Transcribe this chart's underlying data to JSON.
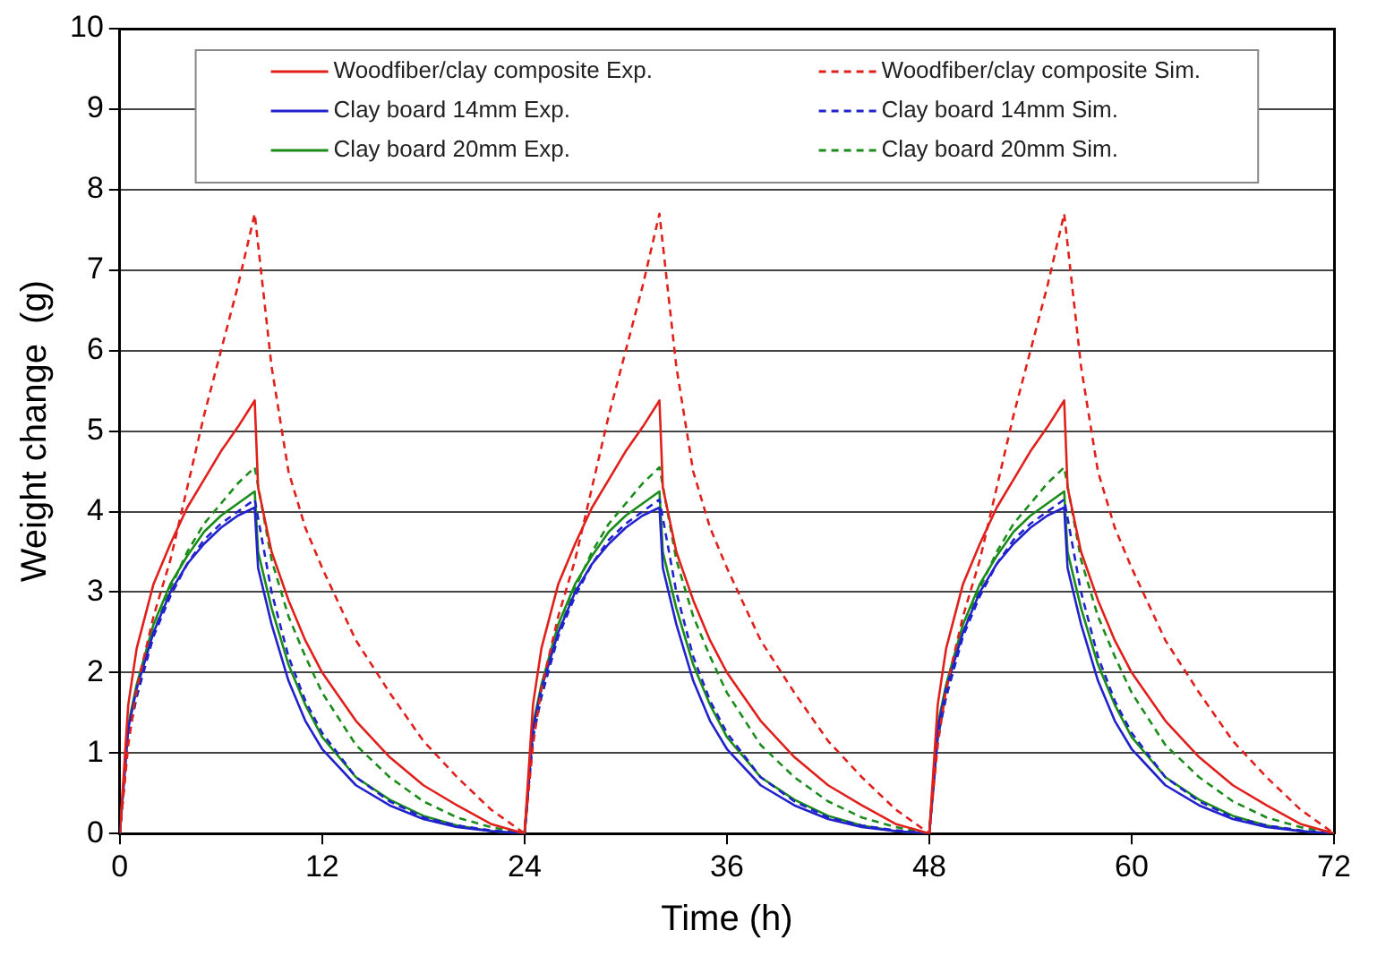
{
  "chart_data": {
    "type": "line",
    "xlabel": "Time (h)",
    "ylabel": "Weight change  (g)",
    "xlim": [
      0,
      72
    ],
    "xticks": [
      0,
      12,
      24,
      36,
      48,
      60,
      72
    ],
    "ylim": [
      0,
      10
    ],
    "yticks": [
      0,
      1,
      2,
      3,
      4,
      5,
      6,
      7,
      8,
      9,
      10
    ],
    "grid": "y",
    "legend": "top",
    "marker": "none",
    "series": [
      {
        "name": "Woodfiber/clay composite Exp.",
        "color": "#e0201b",
        "line_style": "solid",
        "x": [
          0,
          0.5,
          1,
          2,
          3,
          4,
          5,
          6,
          7,
          8,
          8.2,
          9,
          10,
          11,
          12,
          14,
          16,
          18,
          20,
          22,
          24,
          24.5,
          25,
          26,
          27,
          28,
          29,
          30,
          31,
          32,
          32.2,
          33,
          34,
          35,
          36,
          38,
          40,
          42,
          44,
          46,
          48,
          48.5,
          49,
          50,
          51,
          52,
          53,
          54,
          55,
          56,
          56.2,
          57,
          58,
          59,
          60,
          62,
          64,
          66,
          68,
          70,
          72
        ],
        "values": [
          0,
          1.6,
          2.3,
          3.1,
          3.6,
          4.05,
          4.4,
          4.75,
          5.05,
          5.38,
          4.3,
          3.5,
          2.9,
          2.4,
          2.0,
          1.4,
          0.95,
          0.6,
          0.35,
          0.12,
          0,
          1.6,
          2.3,
          3.1,
          3.6,
          4.05,
          4.4,
          4.75,
          5.05,
          5.38,
          4.3,
          3.5,
          2.9,
          2.4,
          2.0,
          1.4,
          0.95,
          0.6,
          0.35,
          0.12,
          0,
          1.6,
          2.3,
          3.1,
          3.6,
          4.05,
          4.4,
          4.75,
          5.05,
          5.38,
          4.3,
          3.5,
          2.9,
          2.4,
          2.0,
          1.4,
          0.95,
          0.6,
          0.35,
          0.12,
          0
        ]
      },
      {
        "name": "Woodfiber/clay composite Sim.",
        "color": "#e0201b",
        "line_style": "dashed",
        "x": [
          0,
          0.5,
          1,
          2,
          3,
          4,
          5,
          6,
          7,
          8,
          9,
          10,
          11,
          12,
          14,
          16,
          18,
          20,
          22,
          24,
          24.5,
          25,
          26,
          27,
          28,
          29,
          30,
          31,
          32,
          33,
          34,
          35,
          36,
          38,
          40,
          42,
          44,
          46,
          48,
          48.5,
          49,
          50,
          51,
          52,
          53,
          54,
          55,
          56,
          57,
          58,
          59,
          60,
          62,
          64,
          66,
          68,
          70,
          72
        ],
        "values": [
          0,
          1.1,
          1.8,
          2.7,
          3.4,
          4.3,
          5.2,
          6.0,
          6.8,
          7.7,
          5.8,
          4.5,
          3.8,
          3.3,
          2.4,
          1.75,
          1.15,
          0.7,
          0.3,
          0,
          1.1,
          1.8,
          2.7,
          3.4,
          4.3,
          5.2,
          6.0,
          6.8,
          7.7,
          5.8,
          4.5,
          3.8,
          3.3,
          2.4,
          1.75,
          1.15,
          0.7,
          0.3,
          0,
          1.1,
          1.8,
          2.7,
          3.4,
          4.3,
          5.2,
          6.0,
          6.8,
          7.7,
          5.8,
          4.5,
          3.8,
          3.3,
          2.4,
          1.75,
          1.15,
          0.7,
          0.3,
          0
        ]
      },
      {
        "name": "Clay board 14mm Exp.",
        "color": "#2222cc",
        "line_style": "solid",
        "x": [
          0,
          0.5,
          1,
          2,
          3,
          4,
          5,
          6,
          7,
          8,
          8.2,
          9,
          10,
          11,
          12,
          14,
          16,
          18,
          20,
          22,
          24,
          24.5,
          25,
          26,
          27,
          28,
          29,
          30,
          31,
          32,
          32.2,
          33,
          34,
          35,
          36,
          38,
          40,
          42,
          44,
          46,
          48,
          48.5,
          49,
          50,
          51,
          52,
          53,
          54,
          55,
          56,
          56.2,
          57,
          58,
          59,
          60,
          62,
          64,
          66,
          68,
          70,
          72
        ],
        "values": [
          0,
          1.3,
          1.8,
          2.5,
          3.0,
          3.35,
          3.6,
          3.8,
          3.95,
          4.05,
          3.3,
          2.6,
          1.9,
          1.4,
          1.05,
          0.6,
          0.35,
          0.18,
          0.08,
          0.03,
          0,
          1.3,
          1.8,
          2.5,
          3.0,
          3.35,
          3.6,
          3.8,
          3.95,
          4.05,
          3.3,
          2.6,
          1.9,
          1.4,
          1.05,
          0.6,
          0.35,
          0.18,
          0.08,
          0.03,
          0,
          1.3,
          1.8,
          2.5,
          3.0,
          3.35,
          3.6,
          3.8,
          3.95,
          4.05,
          3.3,
          2.6,
          1.9,
          1.4,
          1.05,
          0.6,
          0.35,
          0.18,
          0.08,
          0.03,
          0
        ]
      },
      {
        "name": "Clay board 14mm Sim.",
        "color": "#2222cc",
        "line_style": "dashed",
        "x": [
          0,
          0.5,
          1,
          2,
          3,
          4,
          5,
          6,
          7,
          8,
          9,
          10,
          11,
          12,
          14,
          16,
          18,
          20,
          22,
          24,
          24.5,
          25,
          26,
          27,
          28,
          29,
          30,
          31,
          32,
          33,
          34,
          35,
          36,
          38,
          40,
          42,
          44,
          46,
          48,
          48.5,
          49,
          50,
          51,
          52,
          53,
          54,
          55,
          56,
          57,
          58,
          59,
          60,
          62,
          64,
          66,
          68,
          70,
          72
        ],
        "values": [
          0,
          1.2,
          1.7,
          2.45,
          2.95,
          3.35,
          3.65,
          3.85,
          4.0,
          4.15,
          3.0,
          2.2,
          1.65,
          1.25,
          0.7,
          0.4,
          0.2,
          0.1,
          0.04,
          0,
          1.2,
          1.7,
          2.45,
          2.95,
          3.35,
          3.65,
          3.85,
          4.0,
          4.15,
          3.0,
          2.2,
          1.65,
          1.25,
          0.7,
          0.4,
          0.2,
          0.1,
          0.04,
          0,
          1.2,
          1.7,
          2.45,
          2.95,
          3.35,
          3.65,
          3.85,
          4.0,
          4.15,
          3.0,
          2.2,
          1.65,
          1.25,
          0.7,
          0.4,
          0.2,
          0.1,
          0.04,
          0
        ]
      },
      {
        "name": "Clay board 20mm Exp.",
        "color": "#1a8c1a",
        "line_style": "solid",
        "x": [
          0,
          0.5,
          1,
          2,
          3,
          4,
          5,
          6,
          7,
          8,
          8.2,
          9,
          10,
          11,
          12,
          14,
          16,
          18,
          20,
          22,
          24,
          24.5,
          25,
          26,
          27,
          28,
          29,
          30,
          31,
          32,
          32.2,
          33,
          34,
          35,
          36,
          38,
          40,
          42,
          44,
          46,
          48,
          48.5,
          49,
          50,
          51,
          52,
          53,
          54,
          55,
          56,
          56.2,
          57,
          58,
          59,
          60,
          62,
          64,
          66,
          68,
          70,
          72
        ],
        "values": [
          0,
          1.35,
          1.85,
          2.6,
          3.1,
          3.45,
          3.75,
          3.95,
          4.1,
          4.25,
          3.5,
          2.8,
          2.1,
          1.6,
          1.2,
          0.7,
          0.42,
          0.22,
          0.1,
          0.03,
          0,
          1.35,
          1.85,
          2.6,
          3.1,
          3.45,
          3.75,
          3.95,
          4.1,
          4.25,
          3.5,
          2.8,
          2.1,
          1.6,
          1.2,
          0.7,
          0.42,
          0.22,
          0.1,
          0.03,
          0,
          1.35,
          1.85,
          2.6,
          3.1,
          3.45,
          3.75,
          3.95,
          4.1,
          4.25,
          3.5,
          2.8,
          2.1,
          1.6,
          1.2,
          0.7,
          0.42,
          0.22,
          0.1,
          0.03,
          0
        ]
      },
      {
        "name": "Clay board 20mm Sim.",
        "color": "#1a8c1a",
        "line_style": "dashed",
        "x": [
          0,
          0.5,
          1,
          2,
          3,
          4,
          5,
          6,
          7,
          8,
          9,
          10,
          11,
          12,
          14,
          16,
          18,
          20,
          22,
          24,
          24.5,
          25,
          26,
          27,
          28,
          29,
          30,
          31,
          32,
          33,
          34,
          35,
          36,
          38,
          40,
          42,
          44,
          46,
          48,
          48.5,
          49,
          50,
          51,
          52,
          53,
          54,
          55,
          56,
          57,
          58,
          59,
          60,
          62,
          64,
          66,
          68,
          70,
          72
        ],
        "values": [
          0,
          1.2,
          1.7,
          2.5,
          3.05,
          3.5,
          3.85,
          4.1,
          4.35,
          4.55,
          3.4,
          2.7,
          2.2,
          1.75,
          1.1,
          0.7,
          0.4,
          0.2,
          0.08,
          0,
          1.2,
          1.7,
          2.5,
          3.05,
          3.5,
          3.85,
          4.1,
          4.35,
          4.55,
          3.4,
          2.7,
          2.2,
          1.75,
          1.1,
          0.7,
          0.4,
          0.2,
          0.08,
          0,
          1.2,
          1.7,
          2.5,
          3.05,
          3.5,
          3.85,
          4.1,
          4.35,
          4.55,
          3.4,
          2.7,
          2.2,
          1.75,
          1.1,
          0.7,
          0.4,
          0.2,
          0.08,
          0
        ]
      }
    ]
  }
}
